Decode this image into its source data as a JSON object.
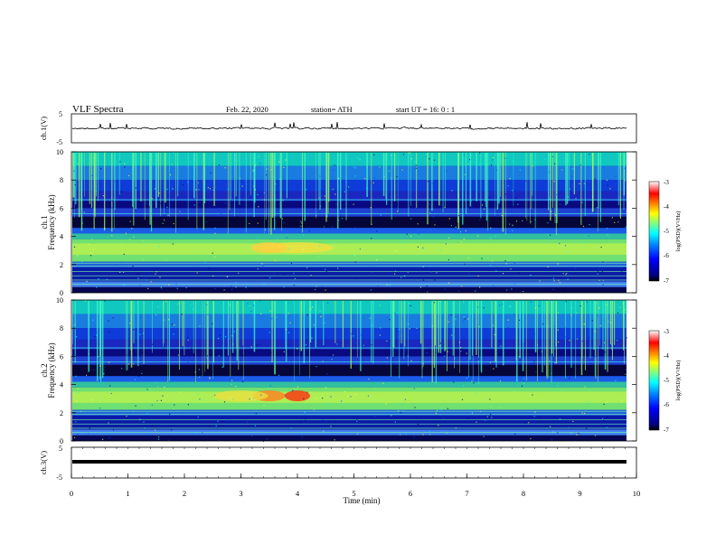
{
  "header": {
    "title": "VLF  Spectra",
    "date": "Feb. 22, 2020",
    "station": "station= ATH",
    "start_ut": "start  UT  =    16: 0   : 1"
  },
  "chart_data": [
    {
      "type": "line",
      "panel": "ch1-waveform",
      "ylabel": "ch.1(V)",
      "ylim": [
        -5,
        5
      ],
      "yticks": [
        "5",
        "-5"
      ],
      "xlim": [
        0,
        10
      ],
      "description_series": "waveform near -0.2 V with noise"
    },
    {
      "type": "heatmap",
      "panel": "ch1-spectrogram",
      "ylabel": "ch.1\nFrequency  (kHz)",
      "ylabel_line1": "ch.1",
      "ylabel_line2": "Frequency  (kHz)",
      "ylim": [
        0,
        10
      ],
      "yticks": [
        "10",
        "8",
        "6",
        "4",
        "2",
        "0"
      ],
      "xlim": [
        0,
        10
      ],
      "colorbar": {
        "label": "log(PSD)(V²/Hz)",
        "range": [
          -7,
          -3
        ],
        "ticks": [
          "-3",
          "-4",
          "-5",
          "-6",
          "-7"
        ]
      }
    },
    {
      "type": "heatmap",
      "panel": "ch2-spectrogram",
      "ylabel_line1": "ch.2",
      "ylabel_line2": "Frequency  (kHz)",
      "ylim": [
        0,
        10
      ],
      "yticks": [
        "10",
        "8",
        "6",
        "4",
        "2",
        "0"
      ],
      "xlim": [
        0,
        10
      ],
      "colorbar": {
        "label": "log(PSD)(V²/Hz)",
        "range": [
          -7,
          -3
        ],
        "ticks": [
          "-3",
          "-4",
          "-5",
          "-6",
          "-7"
        ]
      }
    },
    {
      "type": "line",
      "panel": "ch3-waveform",
      "ylabel": "ch.3(V)",
      "ylim": [
        -5,
        5
      ],
      "yticks": [
        "5",
        "-5"
      ],
      "xlim": [
        0,
        10
      ],
      "xlabel": "Time  (min)",
      "xticks": [
        "0",
        "1",
        "2",
        "3",
        "4",
        "5",
        "6",
        "7",
        "8",
        "9",
        "10"
      ]
    }
  ],
  "colors": {
    "scale": [
      "#000080",
      "#0000ff",
      "#0080ff",
      "#00ffff",
      "#80ff80",
      "#ffff00",
      "#ff8000",
      "#ff0000",
      "#ffffff"
    ]
  }
}
